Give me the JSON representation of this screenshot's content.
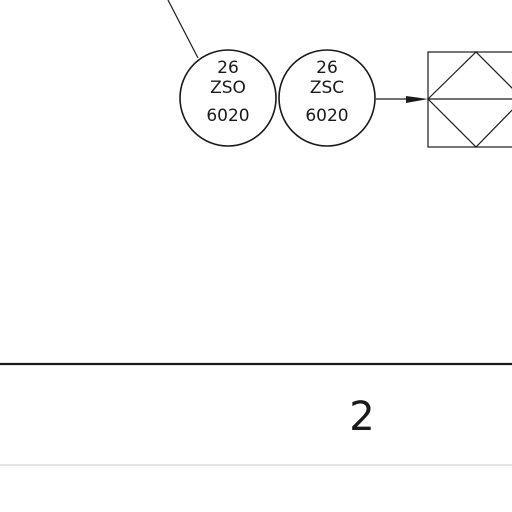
{
  "instruments": [
    {
      "loop": "26",
      "tag": "ZSO",
      "number": "6020"
    },
    {
      "loop": "26",
      "tag": "ZSC",
      "number": "6020"
    }
  ],
  "section_label": "2",
  "colors": {
    "line": "#1a1a1a",
    "faint_line": "#c8c8c8",
    "background": "#ffffff"
  }
}
